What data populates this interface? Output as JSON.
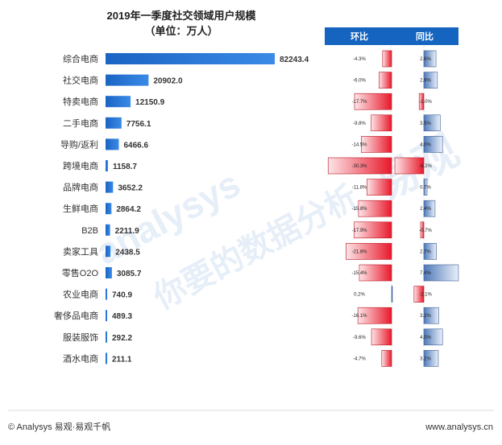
{
  "chart_data": {
    "type": "bar",
    "title": "2019年一季度社交领域用户规模",
    "subtitle": "（单位：万人）",
    "categories": [
      "综合电商",
      "社交电商",
      "特卖电商",
      "二手电商",
      "导购/返利",
      "跨境电商",
      "品牌电商",
      "生鲜电商",
      "B2B",
      "卖家工具",
      "零售O2O",
      "农业电商",
      "奢侈品电商",
      "服装服饰",
      "酒水电商"
    ],
    "values": [
      82243.4,
      20902.0,
      12150.9,
      7756.1,
      6466.6,
      1158.7,
      3652.2,
      2864.2,
      2211.9,
      2438.5,
      3085.7,
      740.9,
      489.3,
      292.2,
      211.1
    ],
    "value_labels": [
      "82243.4",
      "20902.0",
      "12150.9",
      "7756.1",
      "6466.6",
      "1158.7",
      "3652.2",
      "2864.2",
      "2211.9",
      "2438.5",
      "3085.7",
      "740.9",
      "489.3",
      "292.2",
      "211.1"
    ],
    "qoq": {
      "header": "环比",
      "values": [
        -4.3,
        -6.0,
        -17.7,
        -9.8,
        -14.5,
        -30.3,
        -11.8,
        -15.8,
        -17.9,
        -21.8,
        -15.4,
        0.2,
        -16.1,
        -9.6,
        -4.7
      ],
      "labels": [
        "-4.3%",
        "-6.0%",
        "-17.7%",
        "-9.8%",
        "-14.5%",
        "-30.3%",
        "-11.8%",
        "-15.8%",
        "-17.9%",
        "-21.8%",
        "-15.4%",
        "0.2%",
        "-16.1%",
        "-9.6%",
        "-4.7%"
      ]
    },
    "yoy": {
      "header": "同比",
      "values": [
        2.6,
        2.9,
        -1.0,
        3.5,
        4.0,
        -6.2,
        0.7,
        2.4,
        -0.7,
        2.7,
        7.4,
        -2.1,
        3.2,
        4.0,
        3.1
      ],
      "labels": [
        "2.6%",
        "2.9%",
        "-1.0%",
        "3.5%",
        "4.0%",
        "-6.2%",
        "0.7%",
        "2.4%",
        "-0.7%",
        "2.7%",
        "7.4%",
        "-2.1%",
        "3.2%",
        "4.0%",
        "3.1%"
      ]
    },
    "colors": {
      "main": "#1f6fd0",
      "header": "#1565c0",
      "negative": "#e8192c",
      "positive": "#4f79b8"
    }
  },
  "watermark": {
    "brand": "analysys",
    "cn_top": "易观",
    "cn_bottom": "你要的数据分析"
  },
  "footer": {
    "left": "© Analysys 易观·易观千帆",
    "right": "www.analysys.cn"
  }
}
